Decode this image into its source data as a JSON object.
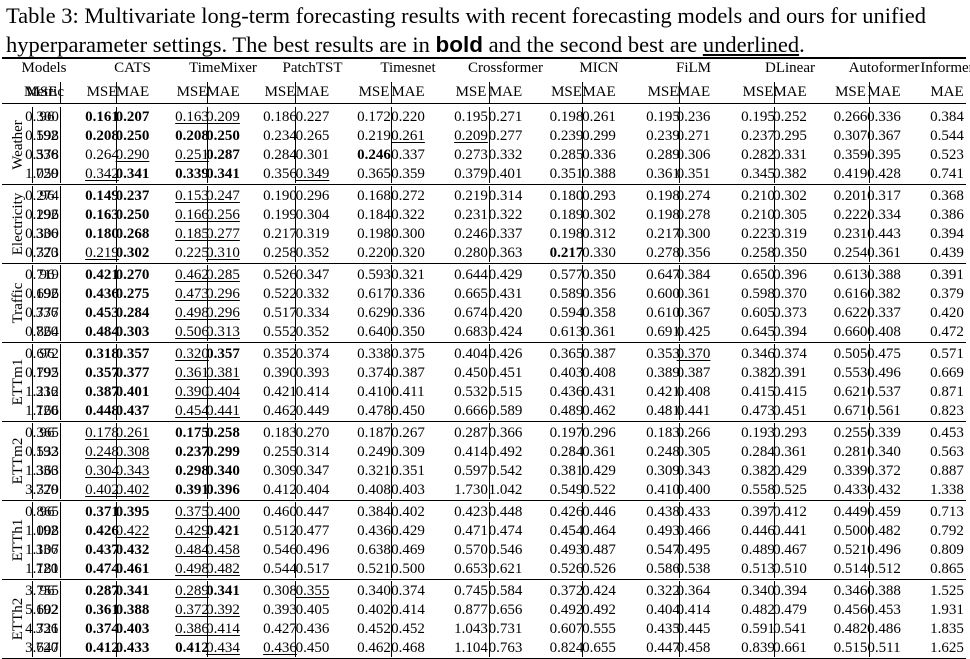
{
  "caption": {
    "part1": "Table 3: Multivariate long-term forecasting results with recent forecasting models and ours for unified hyperparameter settings. The best results are in ",
    "bold_word": "bold",
    "part2": " and the second best are ",
    "underlined_word": "underlined",
    "part3": "."
  },
  "header": {
    "models_label": "Models",
    "metric_label": "Metric",
    "models": [
      "CATS",
      "TimeMixer",
      "PatchTST",
      "Timesnet",
      "Crossformer",
      "MICN",
      "FiLM",
      "DLinear",
      "Autoformer",
      "Informer"
    ],
    "mse": "MSE",
    "mae": "MAE"
  },
  "datasets": [
    {
      "name": "Weather",
      "rows": [
        {
          "h": "96",
          "v": [
            "0.161",
            "0.207",
            "0.163",
            "0.209",
            "0.186",
            "0.227",
            "0.172",
            "0.220",
            "0.195",
            "0.271",
            "0.198",
            "0.261",
            "0.195",
            "0.236",
            "0.195",
            "0.252",
            "0.266",
            "0.336",
            "0.300",
            "0.384"
          ],
          "b": [
            0,
            1
          ],
          "u": [
            2,
            3
          ]
        },
        {
          "h": "192",
          "v": [
            "0.208",
            "0.250",
            "0.208",
            "0.250",
            "0.234",
            "0.265",
            "0.219",
            "0.261",
            "0.209",
            "0.277",
            "0.239",
            "0.299",
            "0.239",
            "0.271",
            "0.237",
            "0.295",
            "0.307",
            "0.367",
            "0.598",
            "0.544"
          ],
          "b": [
            0,
            1,
            2,
            3
          ],
          "u": [
            7,
            8
          ]
        },
        {
          "h": "336",
          "v": [
            "0.264",
            "0.290",
            "0.251",
            "0.287",
            "0.284",
            "0.301",
            "0.246",
            "0.337",
            "0.273",
            "0.332",
            "0.285",
            "0.336",
            "0.289",
            "0.306",
            "0.282",
            "0.331",
            "0.359",
            "0.395",
            "0.578",
            "0.523"
          ],
          "b": [
            3,
            6
          ],
          "u": [
            1,
            2
          ]
        },
        {
          "h": "720",
          "v": [
            "0.342",
            "0.341",
            "0.339",
            "0.341",
            "0.356",
            "0.349",
            "0.365",
            "0.359",
            "0.379",
            "0.401",
            "0.351",
            "0.388",
            "0.361",
            "0.351",
            "0.345",
            "0.382",
            "0.419",
            "0.428",
            "1.059",
            "0.741"
          ],
          "b": [
            1,
            2,
            3
          ],
          "u": [
            0,
            5
          ]
        }
      ]
    },
    {
      "name": "Electricity",
      "rows": [
        {
          "h": "96",
          "v": [
            "0.149",
            "0.237",
            "0.153",
            "0.247",
            "0.190",
            "0.296",
            "0.168",
            "0.272",
            "0.219",
            "0.314",
            "0.180",
            "0.293",
            "0.198",
            "0.274",
            "0.210",
            "0.302",
            "0.201",
            "0.317",
            "0.274",
            "0.368"
          ],
          "b": [
            0,
            1
          ],
          "u": [
            2,
            3
          ]
        },
        {
          "h": "192",
          "v": [
            "0.163",
            "0.250",
            "0.166",
            "0.256",
            "0.199",
            "0.304",
            "0.184",
            "0.322",
            "0.231",
            "0.322",
            "0.189",
            "0.302",
            "0.198",
            "0.278",
            "0.210",
            "0.305",
            "0.222",
            "0.334",
            "0.296",
            "0.386"
          ],
          "b": [
            0,
            1
          ],
          "u": [
            2,
            3
          ]
        },
        {
          "h": "336",
          "v": [
            "0.180",
            "0.268",
            "0.185",
            "0.277",
            "0.217",
            "0.319",
            "0.198",
            "0.300",
            "0.246",
            "0.337",
            "0.198",
            "0.312",
            "0.217",
            "0.300",
            "0.223",
            "0.319",
            "0.231",
            "0.443",
            "0.300",
            "0.394"
          ],
          "b": [
            0,
            1
          ],
          "u": [
            2,
            3
          ]
        },
        {
          "h": "720",
          "v": [
            "0.219",
            "0.302",
            "0.225",
            "0.310",
            "0.258",
            "0.352",
            "0.220",
            "0.320",
            "0.280",
            "0.363",
            "0.217",
            "0.330",
            "0.278",
            "0.356",
            "0.258",
            "0.350",
            "0.254",
            "0.361",
            "0.373",
            "0.439"
          ],
          "b": [
            1,
            10
          ],
          "u": [
            0,
            3
          ]
        }
      ]
    },
    {
      "name": "Traffic",
      "rows": [
        {
          "h": "96",
          "v": [
            "0.421",
            "0.270",
            "0.462",
            "0.285",
            "0.526",
            "0.347",
            "0.593",
            "0.321",
            "0.644",
            "0.429",
            "0.577",
            "0.350",
            "0.647",
            "0.384",
            "0.650",
            "0.396",
            "0.613",
            "0.388",
            "0.719",
            "0.391"
          ],
          "b": [
            0,
            1
          ],
          "u": [
            2,
            3
          ]
        },
        {
          "h": "192",
          "v": [
            "0.436",
            "0.275",
            "0.473",
            "0.296",
            "0.522",
            "0.332",
            "0.617",
            "0.336",
            "0.665",
            "0.431",
            "0.589",
            "0.356",
            "0.600",
            "0.361",
            "0.598",
            "0.370",
            "0.616",
            "0.382",
            "0.696",
            "0.379"
          ],
          "b": [
            0,
            1
          ],
          "u": [
            2,
            3
          ]
        },
        {
          "h": "336",
          "v": [
            "0.453",
            "0.284",
            "0.498",
            "0.296",
            "0.517",
            "0.334",
            "0.629",
            "0.336",
            "0.674",
            "0.420",
            "0.594",
            "0.358",
            "0.610",
            "0.367",
            "0.605",
            "0.373",
            "0.622",
            "0.337",
            "0.777",
            "0.420"
          ],
          "b": [
            0,
            1
          ],
          "u": [
            2,
            3
          ]
        },
        {
          "h": "720",
          "v": [
            "0.484",
            "0.303",
            "0.506",
            "0.313",
            "0.552",
            "0.352",
            "0.640",
            "0.350",
            "0.683",
            "0.424",
            "0.613",
            "0.361",
            "0.691",
            "0.425",
            "0.645",
            "0.394",
            "0.660",
            "0.408",
            "0.864",
            "0.472"
          ],
          "b": [
            0,
            1
          ],
          "u": [
            2,
            3
          ]
        }
      ]
    },
    {
      "name": "ETTm1",
      "rows": [
        {
          "h": "96",
          "v": [
            "0.318",
            "0.357",
            "0.320",
            "0.357",
            "0.352",
            "0.374",
            "0.338",
            "0.375",
            "0.404",
            "0.426",
            "0.365",
            "0.387",
            "0.353",
            "0.370",
            "0.346",
            "0.374",
            "0.505",
            "0.475",
            "0.672",
            "0.571"
          ],
          "b": [
            0,
            1,
            3
          ],
          "u": [
            2,
            13
          ]
        },
        {
          "h": "192",
          "v": [
            "0.357",
            "0.377",
            "0.361",
            "0.381",
            "0.390",
            "0.393",
            "0.374",
            "0.387",
            "0.450",
            "0.451",
            "0.403",
            "0.408",
            "0.389",
            "0.387",
            "0.382",
            "0.391",
            "0.553",
            "0.496",
            "0.795",
            "0.669"
          ],
          "b": [
            0,
            1
          ],
          "u": [
            2,
            3
          ]
        },
        {
          "h": "336",
          "v": [
            "0.387",
            "0.401",
            "0.390",
            "0.404",
            "0.421",
            "0.414",
            "0.410",
            "0.411",
            "0.532",
            "0.515",
            "0.436",
            "0.431",
            "0.421",
            "0.408",
            "0.415",
            "0.415",
            "0.621",
            "0.537",
            "1.212",
            "0.871"
          ],
          "b": [
            0,
            1
          ],
          "u": [
            2,
            3
          ]
        },
        {
          "h": "720",
          "v": [
            "0.448",
            "0.437",
            "0.454",
            "0.441",
            "0.462",
            "0.449",
            "0.478",
            "0.450",
            "0.666",
            "0.589",
            "0.489",
            "0.462",
            "0.481",
            "0.441",
            "0.473",
            "0.451",
            "0.671",
            "0.561",
            "1.166",
            "0.823"
          ],
          "b": [
            0,
            1
          ],
          "u": [
            2,
            3
          ]
        }
      ]
    },
    {
      "name": "ETTm2",
      "rows": [
        {
          "h": "96",
          "v": [
            "0.178",
            "0.261",
            "0.175",
            "0.258",
            "0.183",
            "0.270",
            "0.187",
            "0.267",
            "0.287",
            "0.366",
            "0.197",
            "0.296",
            "0.183",
            "0.266",
            "0.193",
            "0.293",
            "0.255",
            "0.339",
            "0.365",
            "0.453"
          ],
          "b": [
            2,
            3
          ],
          "u": [
            0,
            1
          ]
        },
        {
          "h": "192",
          "v": [
            "0.248",
            "0.308",
            "0.237",
            "0.299",
            "0.255",
            "0.314",
            "0.249",
            "0.309",
            "0.414",
            "0.492",
            "0.284",
            "0.361",
            "0.248",
            "0.305",
            "0.284",
            "0.361",
            "0.281",
            "0.340",
            "0.533",
            "0.563"
          ],
          "b": [
            2,
            3
          ],
          "u": [
            0,
            1
          ]
        },
        {
          "h": "336",
          "v": [
            "0.304",
            "0.343",
            "0.298",
            "0.340",
            "0.309",
            "0.347",
            "0.321",
            "0.351",
            "0.597",
            "0.542",
            "0.381",
            "0.429",
            "0.309",
            "0.343",
            "0.382",
            "0.429",
            "0.339",
            "0.372",
            "1.363",
            "0.887"
          ],
          "b": [
            2,
            3
          ],
          "u": [
            0,
            1
          ]
        },
        {
          "h": "720",
          "v": [
            "0.402",
            "0.402",
            "0.391",
            "0.396",
            "0.412",
            "0.404",
            "0.408",
            "0.403",
            "1.730",
            "1.042",
            "0.549",
            "0.522",
            "0.410",
            "0.400",
            "0.558",
            "0.525",
            "0.433",
            "0.432",
            "3.379",
            "1.338"
          ],
          "b": [
            2,
            3
          ],
          "u": [
            0,
            1
          ]
        }
      ]
    },
    {
      "name": "ETTh1",
      "rows": [
        {
          "h": "96",
          "v": [
            "0.371",
            "0.395",
            "0.375",
            "0.400",
            "0.460",
            "0.447",
            "0.384",
            "0.402",
            "0.423",
            "0.448",
            "0.426",
            "0.446",
            "0.438",
            "0.433",
            "0.397",
            "0.412",
            "0.449",
            "0.459",
            "0.865",
            "0.713"
          ],
          "b": [
            0,
            1
          ],
          "u": [
            2,
            3
          ]
        },
        {
          "h": "192",
          "v": [
            "0.426",
            "0.422",
            "0.429",
            "0.421",
            "0.512",
            "0.477",
            "0.436",
            "0.429",
            "0.471",
            "0.474",
            "0.454",
            "0.464",
            "0.493",
            "0.466",
            "0.446",
            "0.441",
            "0.500",
            "0.482",
            "1.008",
            "0.792"
          ],
          "b": [
            0,
            3
          ],
          "u": [
            1,
            2
          ]
        },
        {
          "h": "336",
          "v": [
            "0.437",
            "0.432",
            "0.484",
            "0.458",
            "0.546",
            "0.496",
            "0.638",
            "0.469",
            "0.570",
            "0.546",
            "0.493",
            "0.487",
            "0.547",
            "0.495",
            "0.489",
            "0.467",
            "0.521",
            "0.496",
            "1.107",
            "0.809"
          ],
          "b": [
            0,
            1
          ],
          "u": [
            2,
            3
          ]
        },
        {
          "h": "720",
          "v": [
            "0.474",
            "0.461",
            "0.498",
            "0.482",
            "0.544",
            "0.517",
            "0.521",
            "0.500",
            "0.653",
            "0.621",
            "0.526",
            "0.526",
            "0.586",
            "0.538",
            "0.513",
            "0.510",
            "0.514",
            "0.512",
            "1.181",
            "0.865"
          ],
          "b": [
            0,
            1
          ],
          "u": [
            2,
            3
          ]
        }
      ]
    },
    {
      "name": "ETTh2",
      "rows": [
        {
          "h": "96",
          "v": [
            "0.287",
            "0.341",
            "0.289",
            "0.341",
            "0.308",
            "0.355",
            "0.340",
            "0.374",
            "0.745",
            "0.584",
            "0.372",
            "0.424",
            "0.322",
            "0.364",
            "0.340",
            "0.394",
            "0.346",
            "0.388",
            "3.755",
            "1.525"
          ],
          "b": [
            0,
            1,
            3
          ],
          "u": [
            2,
            5
          ]
        },
        {
          "h": "192",
          "v": [
            "0.361",
            "0.388",
            "0.372",
            "0.392",
            "0.393",
            "0.405",
            "0.402",
            "0.414",
            "0.877",
            "0.656",
            "0.492",
            "0.492",
            "0.404",
            "0.414",
            "0.482",
            "0.479",
            "0.456",
            "0.453",
            "5.602",
            "1.931"
          ],
          "b": [
            0,
            1
          ],
          "u": [
            2,
            3
          ]
        },
        {
          "h": "336",
          "v": [
            "0.374",
            "0.403",
            "0.386",
            "0.414",
            "0.427",
            "0.436",
            "0.452",
            "0.452",
            "1.043",
            "0.731",
            "0.607",
            "0.555",
            "0.435",
            "0.445",
            "0.591",
            "0.541",
            "0.482",
            "0.486",
            "4.721",
            "1.835"
          ],
          "b": [
            0,
            1
          ],
          "u": [
            2,
            3
          ]
        },
        {
          "h": "720",
          "v": [
            "0.412",
            "0.433",
            "0.412",
            "0.434",
            "0.436",
            "0.450",
            "0.462",
            "0.468",
            "1.104",
            "0.763",
            "0.824",
            "0.655",
            "0.447",
            "0.458",
            "0.839",
            "0.661",
            "0.515",
            "0.511",
            "3.647",
            "1.625"
          ],
          "b": [
            0,
            1,
            2
          ],
          "u": [
            3,
            4
          ]
        }
      ]
    }
  ]
}
